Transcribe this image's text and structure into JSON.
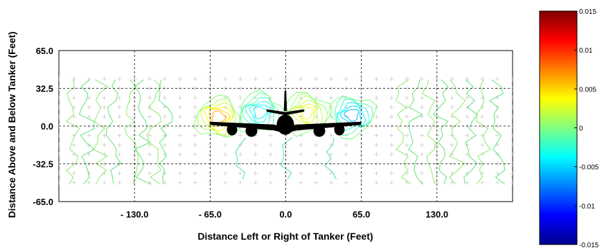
{
  "chart_data": {
    "type": "contour",
    "xlabel": "Distance Left or Right of Tanker (Feet)",
    "ylabel": "Distance Above and Below Tanker (Feet)",
    "xlim": [
      -195,
      195
    ],
    "ylim": [
      -65,
      65
    ],
    "x_ticks": [
      -130,
      -65,
      0,
      65,
      130
    ],
    "x_tick_labels": [
      "- 130.0",
      "- 65.0",
      "0.0",
      "65.0",
      "130.0"
    ],
    "y_ticks": [
      65,
      32.5,
      0,
      -32.5,
      -65
    ],
    "y_tick_labels": [
      "65.0",
      "32.5",
      "0.0",
      "-32.5",
      "-65.0"
    ],
    "grid": true,
    "grid_style": "dashed",
    "sample_grid": {
      "x_step": 13,
      "y_step": 8.125,
      "y_range": [
        -48.75,
        40.625
      ]
    },
    "field_centers": [
      {
        "x": -58,
        "y": 8,
        "value": 0.0075
      },
      {
        "x": -22,
        "y": 12,
        "value": -0.005
      },
      {
        "x": 18,
        "y": 12,
        "value": 0.004
      },
      {
        "x": 57,
        "y": 10,
        "value": -0.007
      }
    ],
    "colorbar": {
      "min": -0.015,
      "max": 0.015,
      "ticks": [
        0.015,
        0.01,
        0.005,
        0,
        -0.005,
        -0.01,
        -0.015
      ],
      "tick_labels": [
        "0.015",
        "0.01",
        "0.005",
        "0",
        "-0.005",
        "-0.01",
        "-0.015"
      ],
      "colormap": "jet"
    },
    "overlay": "aircraft-silhouette"
  }
}
